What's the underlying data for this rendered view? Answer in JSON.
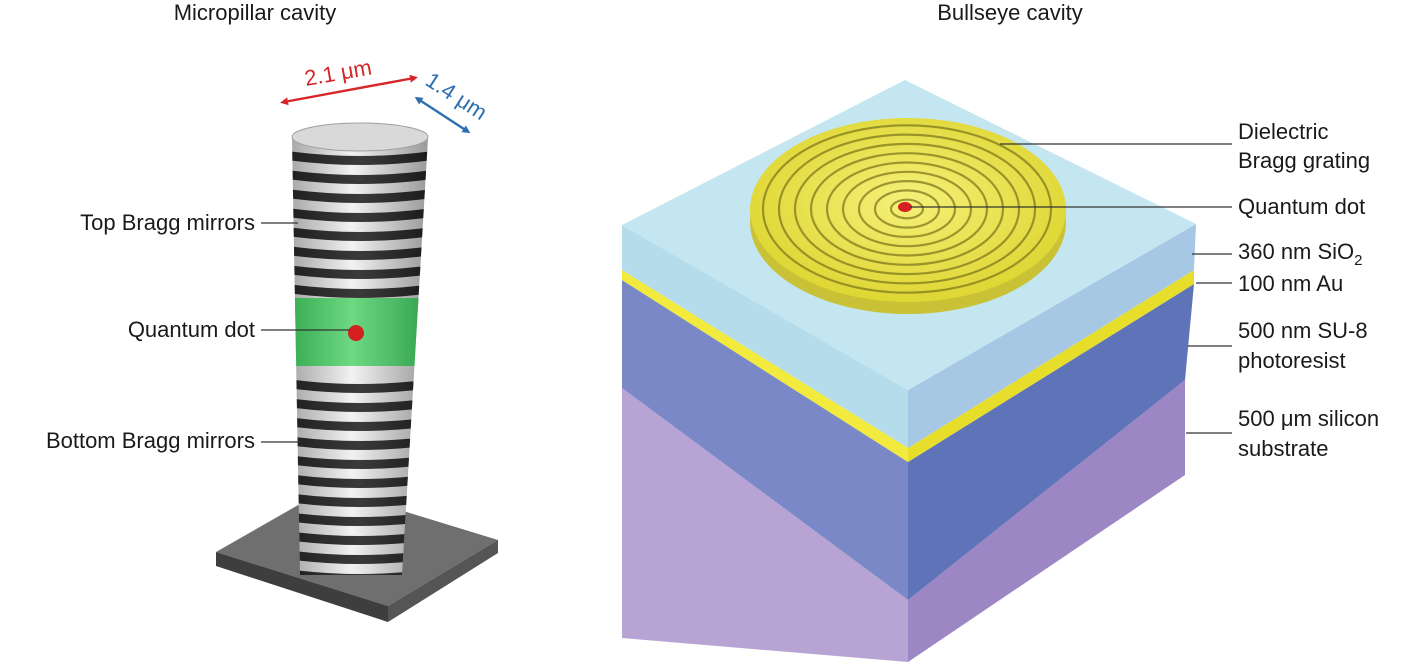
{
  "micropillar": {
    "title": "Micropillar cavity",
    "dim_diameter_long": "2.1 μm",
    "dim_diameter_short": "1.4 μm",
    "label_top_mirrors": "Top Bragg mirrors",
    "label_quantum_dot": "Quantum dot",
    "label_bottom_mirrors": "Bottom Bragg mirrors"
  },
  "bullseye": {
    "title": "Bullseye cavity",
    "label_grating_line1": "Dielectric",
    "label_grating_line2": "Bragg grating",
    "label_quantum_dot": "Quantum dot",
    "label_sio2_prefix": "360 nm SiO",
    "label_sio2_sub": "2",
    "label_au": "100 nm Au",
    "label_su8_line1": "500 nm SU-8",
    "label_su8_line2": "photoresist",
    "label_si_line1": "500 μm silicon",
    "label_si_line2": "substrate"
  },
  "colors": {
    "dimension_red": "#d6262a",
    "dimension_blue": "#2c6fb0",
    "quantum_dot": "#d4201e",
    "active_layer": "#3fbf5a",
    "grating_gold": "#e8e23a",
    "sio2": "#b4dcea",
    "gold_film": "#f2ea3c",
    "su8": "#6f7fc2",
    "silicon": "#a993c8"
  }
}
